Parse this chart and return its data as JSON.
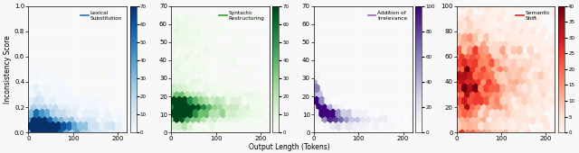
{
  "subplots": [
    {
      "title": "Lexical\nSubstitution",
      "legend_color": "#3070b0",
      "cmap": "Blues",
      "xlim": [
        0,
        220
      ],
      "ylim": [
        0.0,
        1.0
      ],
      "yticks": [
        0.0,
        0.2,
        0.4,
        0.6,
        0.8,
        1.0
      ],
      "ytick_labels": [
        "0.0",
        "0.2",
        "0.4",
        "0.6",
        "0.8",
        "1.0"
      ],
      "clim": [
        0,
        70
      ],
      "cticks": [
        0,
        10,
        20,
        30,
        40,
        50,
        60,
        70
      ],
      "show_ylabel": true,
      "n_points": 3000,
      "seed": 1
    },
    {
      "title": "Syntactic\nRestructuring",
      "legend_color": "#2ca02c",
      "cmap": "Greens",
      "xlim": [
        0,
        220
      ],
      "ylim": [
        0,
        70
      ],
      "yticks": [
        0,
        10,
        20,
        30,
        40,
        50,
        60,
        70
      ],
      "ytick_labels": [
        "0",
        "10",
        "20",
        "30",
        "40",
        "50",
        "60",
        "70"
      ],
      "clim": [
        0,
        70
      ],
      "cticks": [
        0,
        10,
        20,
        30,
        40,
        50,
        60,
        70
      ],
      "show_ylabel": false,
      "n_points": 3000,
      "seed": 2
    },
    {
      "title": "Addition of\nIrrelevance",
      "legend_color": "#9467bd",
      "cmap": "Purples",
      "xlim": [
        0,
        220
      ],
      "ylim": [
        0,
        70
      ],
      "yticks": [
        0,
        10,
        20,
        30,
        40,
        50,
        60,
        70
      ],
      "ytick_labels": [
        "0",
        "10",
        "20",
        "30",
        "40",
        "50",
        "60",
        "70"
      ],
      "clim": [
        0,
        100
      ],
      "cticks": [
        0,
        20,
        40,
        60,
        80,
        100
      ],
      "show_ylabel": false,
      "n_points": 2000,
      "seed": 3
    },
    {
      "title": "Semantic\nShift",
      "legend_color": "#d62728",
      "cmap": "Reds",
      "xlim": [
        0,
        220
      ],
      "ylim": [
        0,
        100
      ],
      "yticks": [
        0,
        20,
        40,
        60,
        80,
        100
      ],
      "ytick_labels": [
        "0",
        "20",
        "40",
        "60",
        "80",
        "100"
      ],
      "clim": [
        0,
        40
      ],
      "cticks": [
        0,
        5,
        10,
        15,
        20,
        25,
        30,
        35,
        40
      ],
      "show_ylabel": false,
      "n_points": 3000,
      "seed": 4
    }
  ],
  "xlabel": "Output Length (Tokens)",
  "ylabel": "Inconsistency Score",
  "bg_color": "#f8f8f8",
  "gridsize": 18
}
